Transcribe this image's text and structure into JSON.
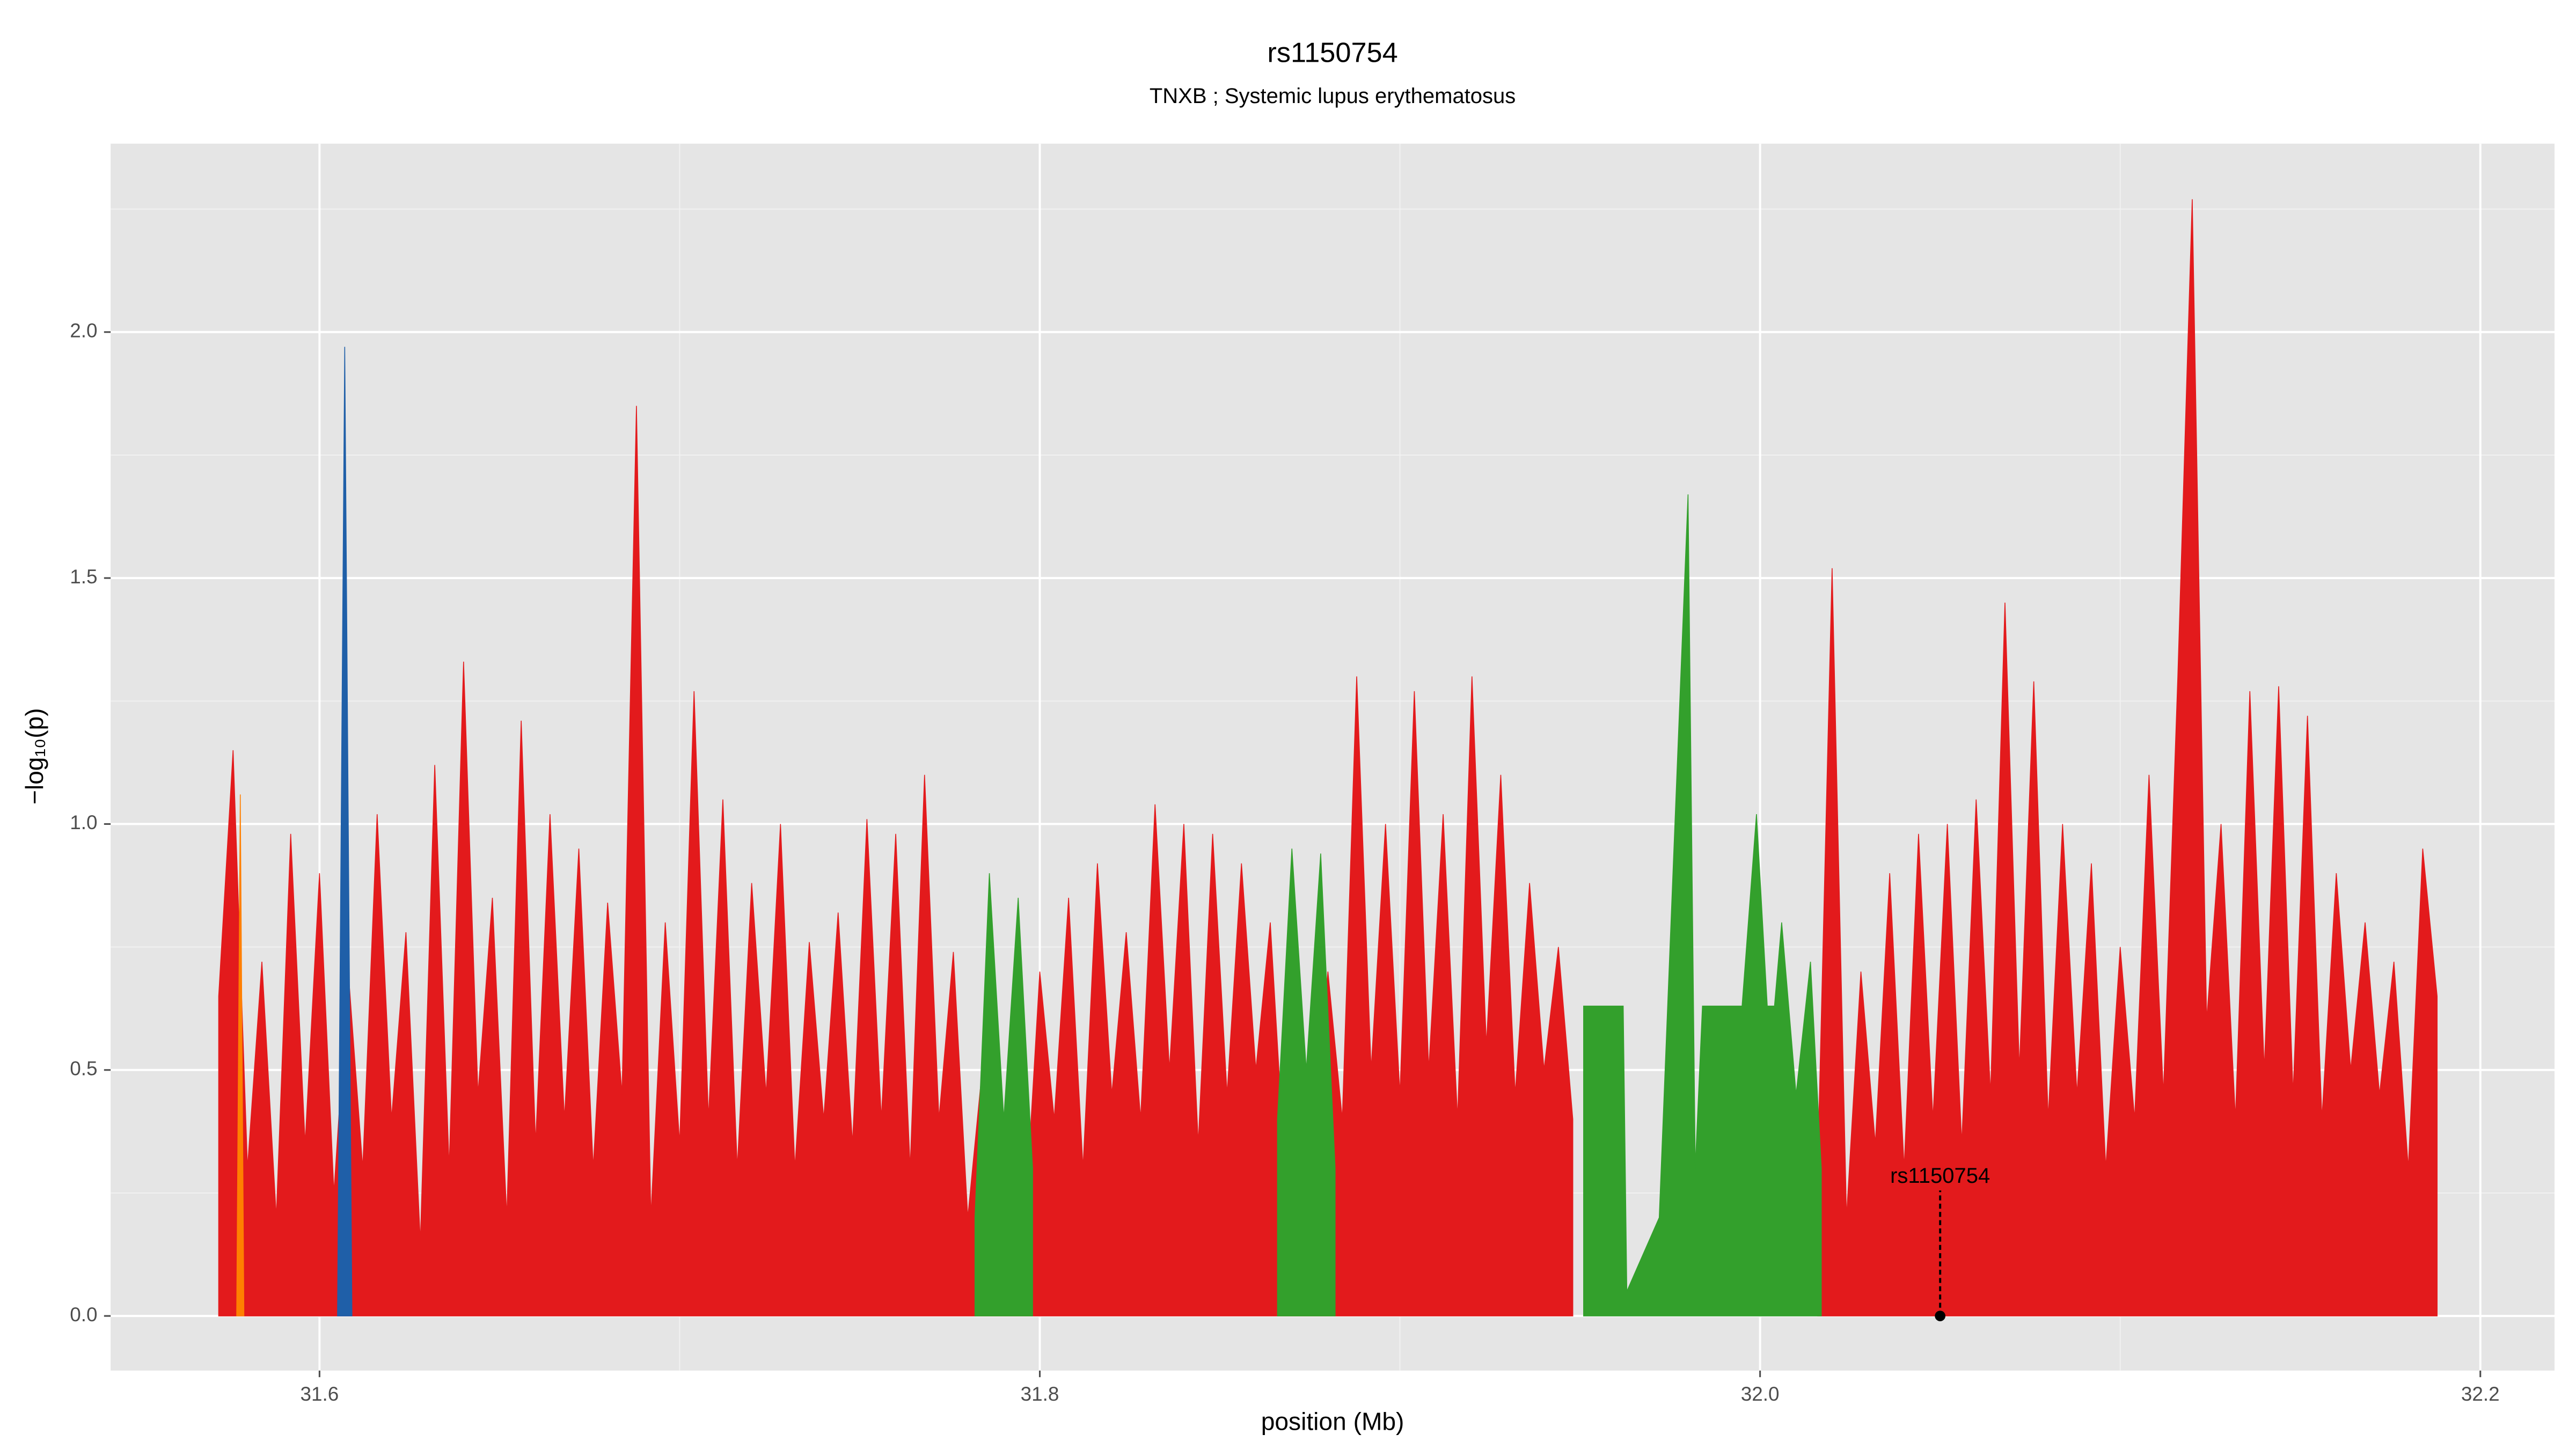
{
  "chart_data": {
    "type": "area",
    "title": "rs1150754",
    "subtitle": "TNXB ; Systemic lupus erythematosus",
    "xlabel": "position (Mb)",
    "ylabel": "−log₁₀(p)",
    "xlim": [
      31.542,
      32.2206
    ],
    "ylim": [
      -0.111,
      2.383
    ],
    "xticks": [
      31.6,
      31.8,
      {
        "value": 32,
        "label": "32.0"
      },
      32.2
    ],
    "yticks": [
      {
        "value": 0,
        "label": "0.0"
      },
      0.5,
      {
        "value": 1,
        "label": "1.0"
      },
      1.5,
      {
        "value": 2,
        "label": "2.0"
      }
    ],
    "x_minor_ticks": [
      31.7,
      31.9,
      32.1
    ],
    "y_minor_ticks": [
      0.25,
      0.75,
      1.25,
      1.75,
      2.25
    ],
    "grid": true,
    "series": [
      {
        "color": "#e31a1c",
        "x": [
          31.572,
          31.576,
          31.58,
          31.584,
          31.588,
          31.592,
          31.596,
          31.6,
          31.604,
          31.608,
          31.612,
          31.616,
          31.62,
          31.624,
          31.628,
          31.632,
          31.636,
          31.64,
          31.644,
          31.648,
          31.652,
          31.656,
          31.66,
          31.664,
          31.668,
          31.672,
          31.676,
          31.68,
          31.684,
          31.688,
          31.692,
          31.696,
          31.7,
          31.704,
          31.708,
          31.712,
          31.716,
          31.72,
          31.724,
          31.728,
          31.732,
          31.736,
          31.74,
          31.744,
          31.748,
          31.752,
          31.756,
          31.76,
          31.764,
          31.768,
          31.772,
          31.776,
          31.78,
          31.784,
          31.788,
          31.792,
          31.796,
          31.8,
          31.804,
          31.808,
          31.812,
          31.816,
          31.82,
          31.824,
          31.828,
          31.832,
          31.836,
          31.84,
          31.844,
          31.848,
          31.852,
          31.856,
          31.86,
          31.864,
          31.868,
          31.872,
          31.876,
          31.88,
          31.884,
          31.888,
          31.892,
          31.896,
          31.9,
          31.904,
          31.908,
          31.912,
          31.916,
          31.92,
          31.924,
          31.928,
          31.932,
          31.936,
          31.94,
          31.944,
          31.948,
          31.95,
          32.016,
          32.02,
          32.024,
          32.028,
          32.032,
          32.036,
          32.04,
          32.044,
          32.048,
          32.052,
          32.056,
          32.06,
          32.064,
          32.068,
          32.072,
          32.076,
          32.08,
          32.084,
          32.088,
          32.092,
          32.096,
          32.1,
          32.104,
          32.108,
          32.112,
          32.116,
          32.12,
          32.124,
          32.128,
          32.132,
          32.136,
          32.14,
          32.144,
          32.148,
          32.152,
          32.156,
          32.16,
          32.164,
          32.168,
          32.172,
          32.176,
          32.18,
          32.184,
          32.188
        ],
        "values": [
          0.65,
          1.15,
          0.3,
          0.72,
          0.2,
          0.98,
          0.35,
          0.9,
          0.25,
          0.7,
          0.3,
          1.02,
          0.4,
          0.78,
          0.15,
          1.12,
          0.3,
          1.33,
          0.45,
          0.85,
          0.2,
          1.21,
          0.35,
          1.02,
          0.4,
          0.95,
          0.3,
          0.84,
          0.45,
          1.85,
          0.2,
          0.8,
          0.35,
          1.27,
          0.4,
          1.05,
          0.3,
          0.88,
          0.45,
          1.0,
          0.3,
          0.76,
          0.4,
          0.82,
          0.35,
          1.01,
          0.4,
          0.98,
          0.3,
          1.1,
          0.4,
          0.74,
          0.2,
          0.5,
          0.15,
          0.6,
          0.2,
          0.7,
          0.4,
          0.85,
          0.3,
          0.92,
          0.45,
          0.78,
          0.4,
          1.04,
          0.5,
          1.0,
          0.35,
          0.98,
          0.45,
          0.92,
          0.5,
          0.8,
          0.3,
          0.6,
          0.35,
          0.7,
          0.4,
          1.3,
          0.5,
          1.0,
          0.45,
          1.27,
          0.5,
          1.02,
          0.4,
          1.3,
          0.55,
          1.1,
          0.45,
          0.88,
          0.5,
          0.75,
          0.4,
          null,
          0.3,
          1.52,
          0.2,
          0.7,
          0.35,
          0.9,
          0.3,
          0.98,
          0.4,
          1.0,
          0.35,
          1.05,
          0.45,
          1.45,
          0.5,
          1.29,
          0.4,
          1.0,
          0.45,
          0.92,
          0.3,
          0.75,
          0.4,
          1.1,
          0.45,
          1.3,
          2.27,
          0.6,
          1.0,
          0.4,
          1.27,
          0.5,
          1.28,
          0.45,
          1.22,
          0.4,
          0.9,
          0.5,
          0.8,
          0.45,
          0.72,
          0.3,
          0.95,
          0.65
        ]
      },
      {
        "color": "#33a02c",
        "x": [
          31.782,
          31.786,
          31.79,
          31.794,
          31.798,
          31.84,
          31.866,
          31.87,
          31.874,
          31.878,
          31.882,
          31.9,
          31.951,
          31.962,
          31.963,
          31.972,
          31.98,
          31.982,
          31.984,
          31.995,
          31.999,
          32.002,
          32.004,
          32.006,
          32.01,
          32.014,
          32.017
        ],
        "values": [
          0.2,
          0.9,
          0.4,
          0.85,
          0.3,
          null,
          0.4,
          0.95,
          0.5,
          0.94,
          0.3,
          null,
          0.63,
          0.63,
          0.05,
          0.2,
          1.67,
          0.3,
          0.63,
          0.63,
          1.02,
          0.63,
          0.63,
          0.8,
          0.45,
          0.72,
          0.3
        ]
      },
      {
        "color": "#1f5fa8",
        "x": [
          31.605,
          31.607,
          31.609
        ],
        "values": [
          0,
          1.97,
          0
        ]
      },
      {
        "color": "#ff7f00",
        "x": [
          31.577,
          31.578,
          31.579
        ],
        "values": [
          0,
          1.06,
          0
        ]
      }
    ],
    "annotations": [
      {
        "label": "rs1150754",
        "x": 32.05,
        "y": 0
      }
    ]
  }
}
